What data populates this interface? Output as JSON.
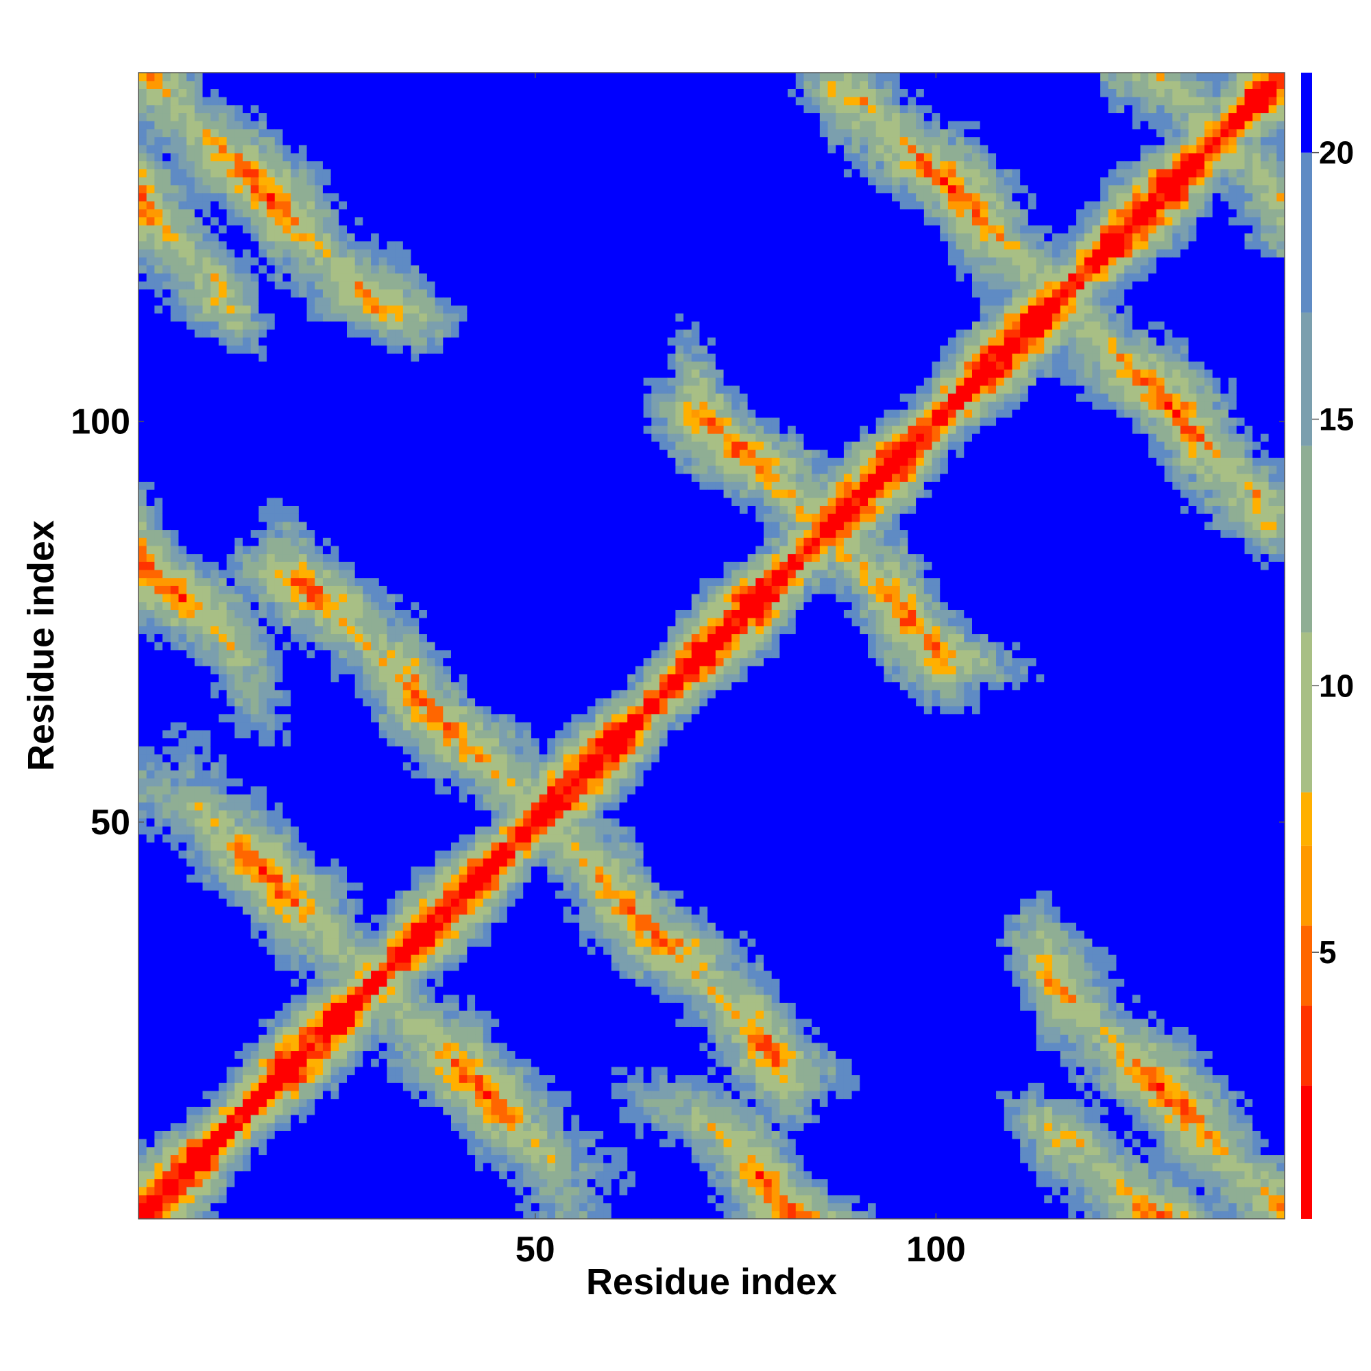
{
  "chart_data": {
    "type": "heatmap",
    "title": "",
    "xlabel": "Residue index",
    "ylabel": "Residue index",
    "x_range": [
      1,
      143
    ],
    "y_range": [
      1,
      143
    ],
    "n_residues": 143,
    "x_ticks": [
      50,
      100
    ],
    "y_ticks": [
      50,
      100
    ],
    "colorbar": {
      "min": 0,
      "max": 21.5,
      "ticks": [
        5,
        10,
        15,
        20
      ],
      "colors": [
        "#ff0000",
        "#ff3300",
        "#ff6600",
        "#ff9900",
        "#ffb000",
        "#a8bf85",
        "#8fae94",
        "#7b9fae",
        "#5f8bc4",
        "#0000ff"
      ],
      "thresholds": [
        2.5,
        4,
        5.5,
        7,
        8,
        11,
        14.5,
        17,
        20
      ]
    },
    "contact_bands": [
      {
        "kind": "diagonal",
        "offset": 0,
        "value_min": 0,
        "value_max": 3
      },
      {
        "kind": "anti",
        "sum": 60,
        "from": 10,
        "to": 52,
        "value_min": 5,
        "value_max": 7.5
      },
      {
        "kind": "anti",
        "sum": 101,
        "from": 22,
        "to": 80,
        "value_min": 5,
        "value_max": 7.5
      },
      {
        "kind": "anti",
        "sum": 172,
        "from": 72,
        "to": 100,
        "value_min": 5,
        "value_max": 7.5
      },
      {
        "kind": "anti",
        "sum": 231,
        "from": 92,
        "to": 140,
        "value_min": 5,
        "value_max": 7.5
      },
      {
        "kind": "anti",
        "sum": 145,
        "from": 115,
        "to": 143,
        "value_min": 5,
        "value_max": 7.5
      },
      {
        "kind": "anti",
        "sum": 128,
        "from": 1,
        "to": 10,
        "value_min": 5,
        "value_max": 7.5
      },
      {
        "kind": "anti",
        "sum": 84,
        "from": 1,
        "to": 12,
        "value_min": 5,
        "value_max": 7.5
      },
      {
        "kind": "anti",
        "sum": 271,
        "from": 128,
        "to": 143,
        "value_min": 5,
        "value_max": 7.5
      }
    ]
  }
}
